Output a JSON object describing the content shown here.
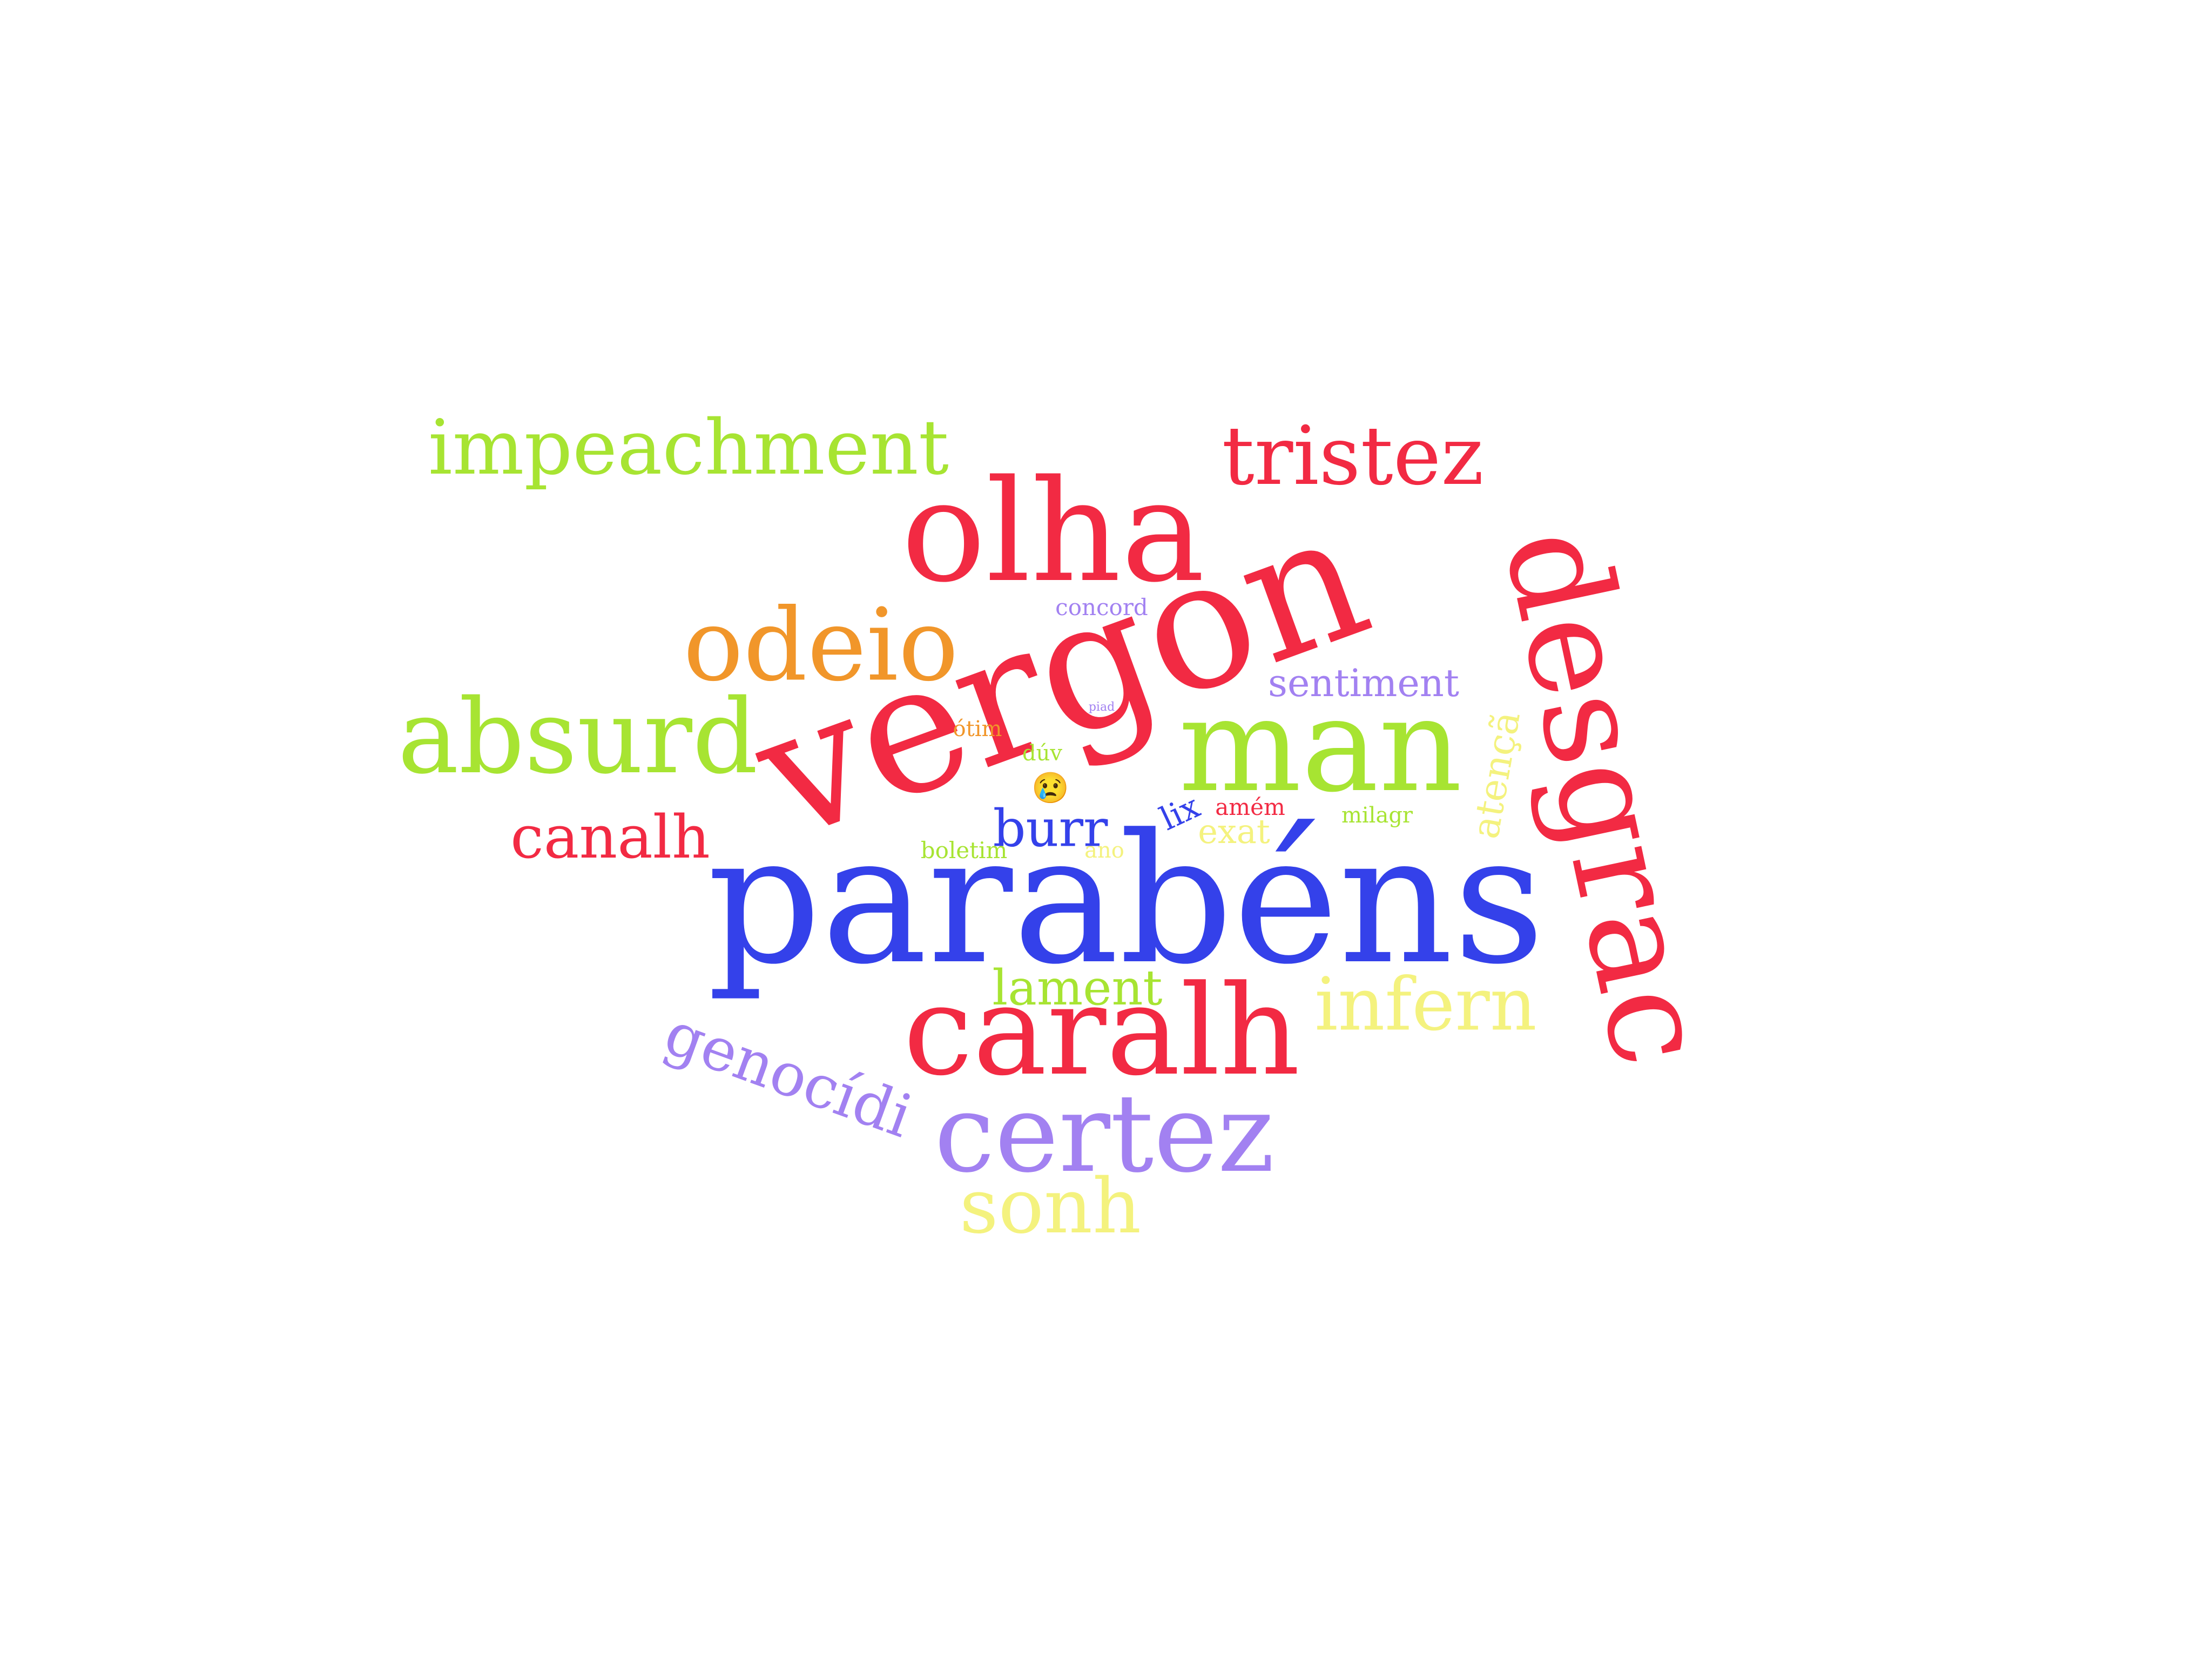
{
  "palette": {
    "red": "#f22a43",
    "blue": "#3441ea",
    "lime": "#a7e432",
    "orange": "#f1962a",
    "purple": "#a281f1",
    "yellow": "#f4f27e"
  },
  "words": [
    {
      "text": "parabéns",
      "color": "#3441ea"
    },
    {
      "text": "vergon",
      "color": "#f22a43"
    },
    {
      "text": "olha",
      "color": "#f22a43"
    },
    {
      "text": "desgrac",
      "color": "#f22a43"
    },
    {
      "text": "man",
      "color": "#a7e432"
    },
    {
      "text": "caralh",
      "color": "#f22a43"
    },
    {
      "text": "certez",
      "color": "#a281f1"
    },
    {
      "text": "absurd",
      "color": "#a7e432"
    },
    {
      "text": "odeio",
      "color": "#f1962a"
    },
    {
      "text": "impeachment",
      "color": "#a7e432"
    },
    {
      "text": "tristez",
      "color": "#f22a43"
    },
    {
      "text": "sonh",
      "color": "#f4f27e"
    },
    {
      "text": "infern",
      "color": "#f4f27e"
    },
    {
      "text": "genocídi",
      "color": "#a281f1"
    },
    {
      "text": "canalh",
      "color": "#f22a43"
    },
    {
      "text": "lament",
      "color": "#a7e432"
    },
    {
      "text": "burr",
      "color": "#3441ea"
    },
    {
      "text": "atençã",
      "color": "#f4f27e"
    },
    {
      "text": "sentiment",
      "color": "#a281f1"
    },
    {
      "text": "exat",
      "color": "#f4f27e"
    },
    {
      "text": "lix",
      "color": "#3441ea"
    },
    {
      "text": "concord",
      "color": "#a281f1"
    },
    {
      "text": "amém",
      "color": "#f22a43"
    },
    {
      "text": "milagr",
      "color": "#a7e432"
    },
    {
      "text": "boletim",
      "color": "#a7e432"
    },
    {
      "text": "ótim",
      "color": "#f1962a"
    },
    {
      "text": "dúv",
      "color": "#a7e432"
    },
    {
      "text": "ano",
      "color": "#f4f27e"
    },
    {
      "text": "piad",
      "color": "#a281f1"
    },
    {
      "text": "😢",
      "color": "#f1962a"
    }
  ]
}
